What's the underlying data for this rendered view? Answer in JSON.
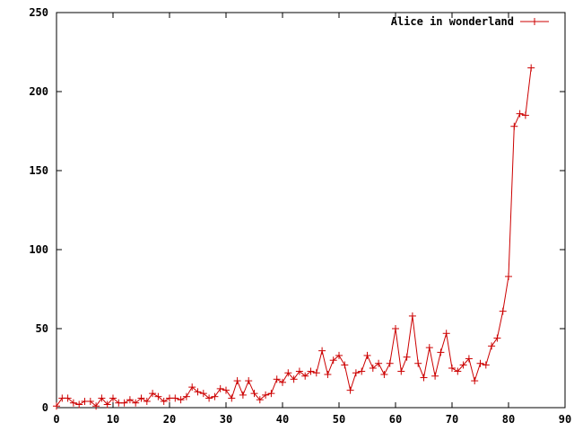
{
  "chart_data": {
    "type": "line",
    "title": "",
    "xlabel": "",
    "ylabel": "",
    "xlim": [
      0,
      90
    ],
    "ylim": [
      0,
      250
    ],
    "x_ticks": [
      0,
      10,
      20,
      30,
      40,
      50,
      60,
      70,
      80,
      90
    ],
    "y_ticks": [
      0,
      50,
      100,
      150,
      200,
      250
    ],
    "x_tick_labels": [
      "0",
      "10",
      "20",
      "30",
      "40",
      "50",
      "60",
      "70",
      "80",
      "90"
    ],
    "y_tick_labels": [
      "0",
      "50",
      "100",
      "150",
      "200",
      "250"
    ],
    "grid": false,
    "legend_position": "top-right",
    "series": [
      {
        "name": "Alice in wonderland",
        "color": "#cc0000",
        "marker": "plus",
        "x": [
          0,
          1,
          2,
          3,
          4,
          5,
          6,
          7,
          8,
          9,
          10,
          11,
          12,
          13,
          14,
          15,
          16,
          17,
          18,
          19,
          20,
          21,
          22,
          23,
          24,
          25,
          26,
          27,
          28,
          29,
          30,
          31,
          32,
          33,
          34,
          35,
          36,
          37,
          38,
          39,
          40,
          41,
          42,
          43,
          44,
          45,
          46,
          47,
          48,
          49,
          50,
          51,
          52,
          53,
          54,
          55,
          56,
          57,
          58,
          59,
          60,
          61,
          62,
          63,
          64,
          65,
          66,
          67,
          68,
          69,
          70,
          71,
          72,
          73,
          74,
          75,
          76,
          77,
          78,
          79,
          80,
          81,
          82,
          83,
          84
        ],
        "y": [
          1,
          6,
          6,
          3,
          2,
          4,
          4,
          1,
          6,
          2,
          6,
          3,
          3,
          5,
          3,
          6,
          4,
          9,
          7,
          4,
          6,
          6,
          5,
          7,
          13,
          10,
          9,
          6,
          7,
          12,
          11,
          6,
          17,
          8,
          17,
          9,
          5,
          8,
          9,
          18,
          16,
          22,
          18,
          23,
          20,
          23,
          22,
          36,
          21,
          30,
          33,
          27,
          11,
          22,
          23,
          33,
          25,
          28,
          21,
          28,
          50,
          23,
          32,
          58,
          28,
          19,
          38,
          20,
          35,
          47,
          25,
          23,
          27,
          31,
          17,
          28,
          27,
          39,
          44,
          61,
          83,
          178,
          186,
          185,
          215
        ]
      }
    ]
  }
}
